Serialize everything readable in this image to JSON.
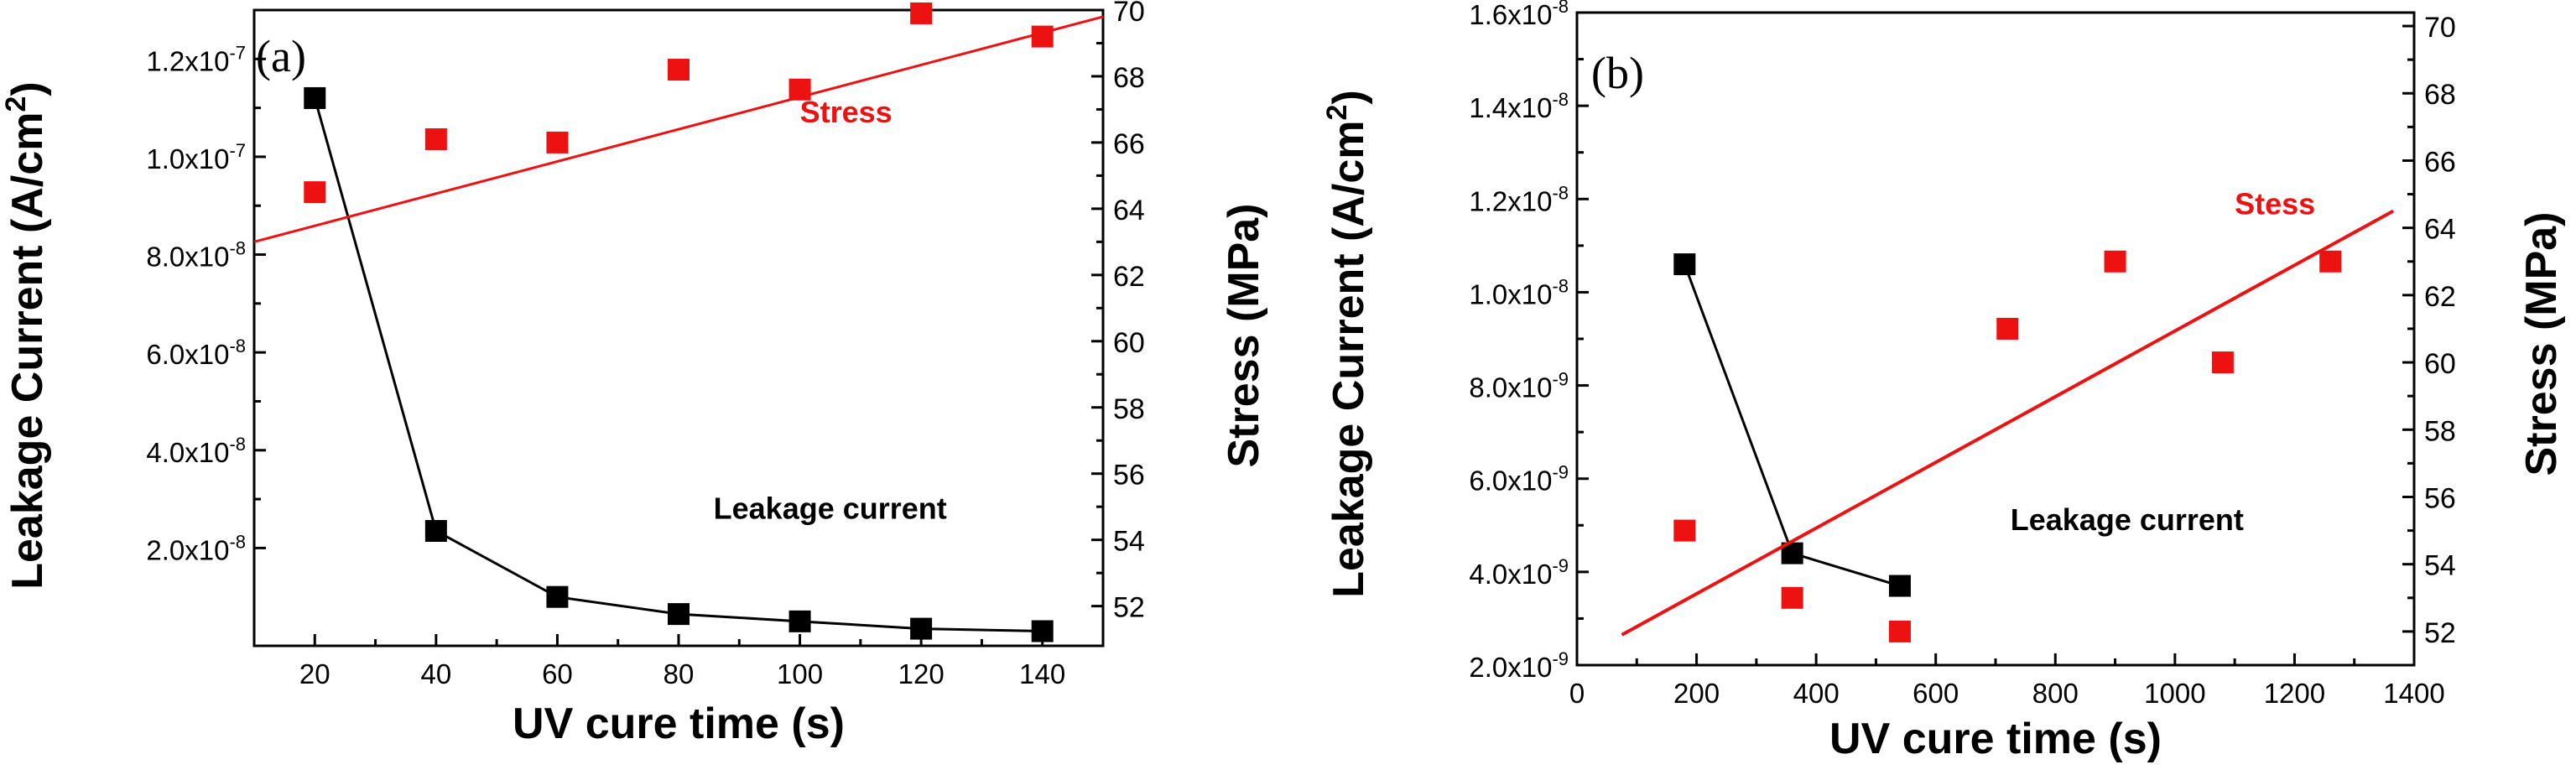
{
  "chart_data": [
    {
      "type": "scatter",
      "panel_label": "(a)",
      "xlabel": "UV cure time (s)",
      "ylabel_left": "Leakage Current (A/cm²)",
      "ylabel_left_main": "Leakage Current (A/cm",
      "ylabel_left_sup": "2",
      "ylabel_left_tail": ")",
      "ylabel_right": "Stress (MPa)",
      "xlim": [
        10,
        150
      ],
      "ylim_left": [
        0,
        1.3e-07
      ],
      "ylim_right": [
        50.8,
        70
      ],
      "x_ticks": [
        {
          "v": 20,
          "label": "20"
        },
        {
          "v": 40,
          "label": "40"
        },
        {
          "v": 60,
          "label": "60"
        },
        {
          "v": 80,
          "label": "80"
        },
        {
          "v": 100,
          "label": "100"
        },
        {
          "v": 120,
          "label": "120"
        },
        {
          "v": 140,
          "label": "140"
        }
      ],
      "y_left_ticks": [
        {
          "v": 2e-08,
          "label": "2.0x10",
          "exp": "-8"
        },
        {
          "v": 4e-08,
          "label": "4.0x10",
          "exp": "-8"
        },
        {
          "v": 6e-08,
          "label": "6.0x10",
          "exp": "-8"
        },
        {
          "v": 8e-08,
          "label": "8.0x10",
          "exp": "-8"
        },
        {
          "v": 1e-07,
          "label": "1.0x10",
          "exp": "-7"
        },
        {
          "v": 1.2e-07,
          "label": "1.2x10",
          "exp": "-7"
        }
      ],
      "y_right_ticks": [
        {
          "v": 52,
          "label": "52"
        },
        {
          "v": 54,
          "label": "54"
        },
        {
          "v": 56,
          "label": "56"
        },
        {
          "v": 58,
          "label": "58"
        },
        {
          "v": 60,
          "label": "60"
        },
        {
          "v": 62,
          "label": "62"
        },
        {
          "v": 64,
          "label": "64"
        },
        {
          "v": 66,
          "label": "66"
        },
        {
          "v": 68,
          "label": "68"
        },
        {
          "v": 70,
          "label": "70"
        }
      ],
      "series": [
        {
          "name": "Leakage current",
          "axis": "left",
          "color": "#000000",
          "connected": true,
          "x": [
            20,
            40,
            60,
            80,
            100,
            120,
            140
          ],
          "y": [
            1.12e-07,
            2.35e-08,
            1e-08,
            6.5e-09,
            5e-09,
            3.5e-09,
            3e-09
          ]
        },
        {
          "name": "Stress",
          "axis": "right",
          "color": "#ee1111",
          "connected": false,
          "x": [
            20,
            40,
            60,
            80,
            100,
            120,
            140
          ],
          "y": [
            64.5,
            66.1,
            66.0,
            68.2,
            67.6,
            69.9,
            69.2
          ],
          "fit": {
            "x": [
              10,
              150
            ],
            "y": [
              63.0,
              69.8
            ]
          }
        }
      ],
      "annotations": [
        {
          "text": "Stress",
          "color": "#ee1111",
          "x": 100,
          "y": 66.6,
          "axis": "right",
          "anchor": "start"
        },
        {
          "text": "Leakage current",
          "color": "#000000",
          "x": 105,
          "y": 2.6e-08,
          "axis": "left",
          "anchor": "middle"
        }
      ]
    },
    {
      "type": "scatter",
      "panel_label": "(b)",
      "xlabel": "UV cure time (s)",
      "ylabel_left": "Leakage Current (A/cm²)",
      "ylabel_left_main": "Leakage Current (A/cm",
      "ylabel_left_sup": "2",
      "ylabel_left_tail": ")",
      "ylabel_right": "Stress (MPa)",
      "xlim": [
        0,
        1400
      ],
      "ylim_left": [
        2e-09,
        1.6e-08
      ],
      "ylim_right": [
        51,
        70.4
      ],
      "x_ticks": [
        {
          "v": 0,
          "label": "0"
        },
        {
          "v": 200,
          "label": "200"
        },
        {
          "v": 400,
          "label": "400"
        },
        {
          "v": 600,
          "label": "600"
        },
        {
          "v": 800,
          "label": "800"
        },
        {
          "v": 1000,
          "label": "1000"
        },
        {
          "v": 1200,
          "label": "1200"
        },
        {
          "v": 1400,
          "label": "1400"
        }
      ],
      "y_left_ticks": [
        {
          "v": 2e-09,
          "label": "2.0x10",
          "exp": "-9"
        },
        {
          "v": 4e-09,
          "label": "4.0x10",
          "exp": "-9"
        },
        {
          "v": 6e-09,
          "label": "6.0x10",
          "exp": "-9"
        },
        {
          "v": 8e-09,
          "label": "8.0x10",
          "exp": "-9"
        },
        {
          "v": 1e-08,
          "label": "1.0x10",
          "exp": "-8"
        },
        {
          "v": 1.2e-08,
          "label": "1.2x10",
          "exp": "-8"
        },
        {
          "v": 1.4e-08,
          "label": "1.4x10",
          "exp": "-8"
        },
        {
          "v": 1.6e-08,
          "label": "1.6x10",
          "exp": "-8"
        }
      ],
      "y_right_ticks": [
        {
          "v": 52,
          "label": "52"
        },
        {
          "v": 54,
          "label": "54"
        },
        {
          "v": 56,
          "label": "56"
        },
        {
          "v": 58,
          "label": "58"
        },
        {
          "v": 60,
          "label": "60"
        },
        {
          "v": 62,
          "label": "62"
        },
        {
          "v": 64,
          "label": "64"
        },
        {
          "v": 66,
          "label": "66"
        },
        {
          "v": 68,
          "label": "68"
        },
        {
          "v": 70,
          "label": "70"
        }
      ],
      "series": [
        {
          "name": "Leakage current",
          "axis": "left",
          "color": "#000000",
          "connected": true,
          "x": [
            180,
            360,
            540
          ],
          "y": [
            1.06e-08,
            4.4e-09,
            3.7e-09
          ]
        },
        {
          "name": "Stess",
          "axis": "right",
          "color": "#ee1111",
          "connected": false,
          "x": [
            180,
            360,
            540,
            720,
            900,
            1080,
            1260
          ],
          "y": [
            55.0,
            53.0,
            52.0,
            61.0,
            63.0,
            60.0,
            63.0
          ],
          "fit": {
            "x": [
              75,
              1365
            ],
            "y": [
              51.9,
              64.5
            ]
          }
        }
      ],
      "annotations": [
        {
          "text": "Stess",
          "color": "#ee1111",
          "x": 1100,
          "y": 64.4,
          "axis": "right",
          "anchor": "start"
        },
        {
          "text": "Leakage current",
          "color": "#000000",
          "x": 920,
          "y": 4.9e-09,
          "axis": "left",
          "anchor": "middle"
        }
      ]
    }
  ]
}
